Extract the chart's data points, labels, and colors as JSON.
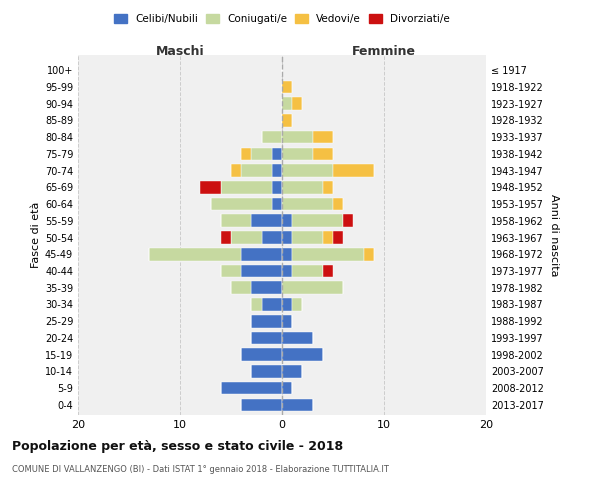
{
  "age_groups": [
    "0-4",
    "5-9",
    "10-14",
    "15-19",
    "20-24",
    "25-29",
    "30-34",
    "35-39",
    "40-44",
    "45-49",
    "50-54",
    "55-59",
    "60-64",
    "65-69",
    "70-74",
    "75-79",
    "80-84",
    "85-89",
    "90-94",
    "95-99",
    "100+"
  ],
  "birth_years": [
    "2013-2017",
    "2008-2012",
    "2003-2007",
    "1998-2002",
    "1993-1997",
    "1988-1992",
    "1983-1987",
    "1978-1982",
    "1973-1977",
    "1968-1972",
    "1963-1967",
    "1958-1962",
    "1953-1957",
    "1948-1952",
    "1943-1947",
    "1938-1942",
    "1933-1937",
    "1928-1932",
    "1923-1927",
    "1918-1922",
    "≤ 1917"
  ],
  "colors": {
    "celibi": "#4472C4",
    "coniugati": "#c6d9a0",
    "vedovi": "#f5c043",
    "divorziati": "#cc1010"
  },
  "maschi": {
    "celibi": [
      4,
      6,
      3,
      4,
      3,
      3,
      2,
      3,
      4,
      4,
      2,
      3,
      1,
      1,
      1,
      1,
      0,
      0,
      0,
      0,
      0
    ],
    "coniugati": [
      0,
      0,
      0,
      0,
      0,
      0,
      1,
      2,
      2,
      9,
      3,
      3,
      6,
      5,
      3,
      2,
      2,
      0,
      0,
      0,
      0
    ],
    "vedovi": [
      0,
      0,
      0,
      0,
      0,
      0,
      0,
      0,
      0,
      0,
      0,
      0,
      0,
      0,
      1,
      1,
      0,
      0,
      0,
      0,
      0
    ],
    "divorziati": [
      0,
      0,
      0,
      0,
      0,
      0,
      0,
      0,
      0,
      0,
      1,
      0,
      0,
      2,
      0,
      0,
      0,
      0,
      0,
      0,
      0
    ]
  },
  "femmine": {
    "celibi": [
      3,
      1,
      2,
      4,
      3,
      1,
      1,
      0,
      1,
      1,
      1,
      1,
      0,
      0,
      0,
      0,
      0,
      0,
      0,
      0,
      0
    ],
    "coniugati": [
      0,
      0,
      0,
      0,
      0,
      0,
      1,
      6,
      3,
      7,
      3,
      5,
      5,
      4,
      5,
      3,
      3,
      0,
      1,
      0,
      0
    ],
    "vedovi": [
      0,
      0,
      0,
      0,
      0,
      0,
      0,
      0,
      0,
      1,
      1,
      0,
      1,
      1,
      4,
      2,
      2,
      1,
      1,
      1,
      0
    ],
    "divorziati": [
      0,
      0,
      0,
      0,
      0,
      0,
      0,
      0,
      1,
      0,
      1,
      1,
      0,
      0,
      0,
      0,
      0,
      0,
      0,
      0,
      0
    ]
  },
  "xlim": [
    -20,
    20
  ],
  "xticks": [
    -20,
    -10,
    0,
    10,
    20
  ],
  "xticklabels": [
    "20",
    "10",
    "0",
    "10",
    "20"
  ],
  "title": "Popolazione per età, sesso e stato civile - 2018",
  "subtitle": "COMUNE DI VALLANZENGO (BI) - Dati ISTAT 1° gennaio 2018 - Elaborazione TUTTITALIA.IT",
  "ylabel_left": "Fasce di età",
  "ylabel_right": "Anni di nascita",
  "header_maschi": "Maschi",
  "header_femmine": "Femmine",
  "legend_labels": [
    "Celibi/Nubili",
    "Coniugati/e",
    "Vedovi/e",
    "Divorziati/e"
  ],
  "background_color": "#f0f0f0"
}
